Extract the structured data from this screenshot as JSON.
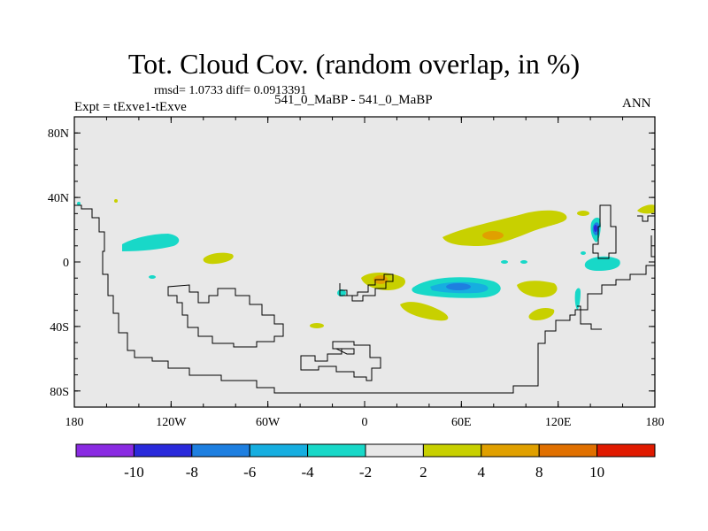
{
  "title": "Tot. Cloud Cov. (random overlap, in %)",
  "stats": "rmsd= 1.0733 diff= 0.0913391",
  "experiment": "Expt = tExve1-tExve",
  "case": "541_0_MaBP - 541_0_MaBP",
  "season": "ANN",
  "axes": {
    "lat_ticks": [
      {
        "label": "80N",
        "value": 80
      },
      {
        "label": "40N",
        "value": 40
      },
      {
        "label": "0",
        "value": 0
      },
      {
        "label": "40S",
        "value": -40
      },
      {
        "label": "80S",
        "value": -80
      }
    ],
    "lon_ticks": [
      {
        "label": "180",
        "value": -180
      },
      {
        "label": "120W",
        "value": -120
      },
      {
        "label": "60W",
        "value": -60
      },
      {
        "label": "0",
        "value": 0
      },
      {
        "label": "60E",
        "value": 60
      },
      {
        "label": "120E",
        "value": 120
      },
      {
        "label": "180",
        "value": 180
      }
    ]
  },
  "colorbar": {
    "colors": [
      "#8a2be2",
      "#2a2adb",
      "#1e7fe0",
      "#16aee0",
      "#18d8c8",
      "#e8e8e8",
      "#c8d000",
      "#e0a000",
      "#e07000",
      "#e01a00"
    ],
    "labels": [
      "-10",
      "-8",
      "-6",
      "-4",
      "-2",
      "2",
      "4",
      "8",
      "10"
    ]
  }
}
